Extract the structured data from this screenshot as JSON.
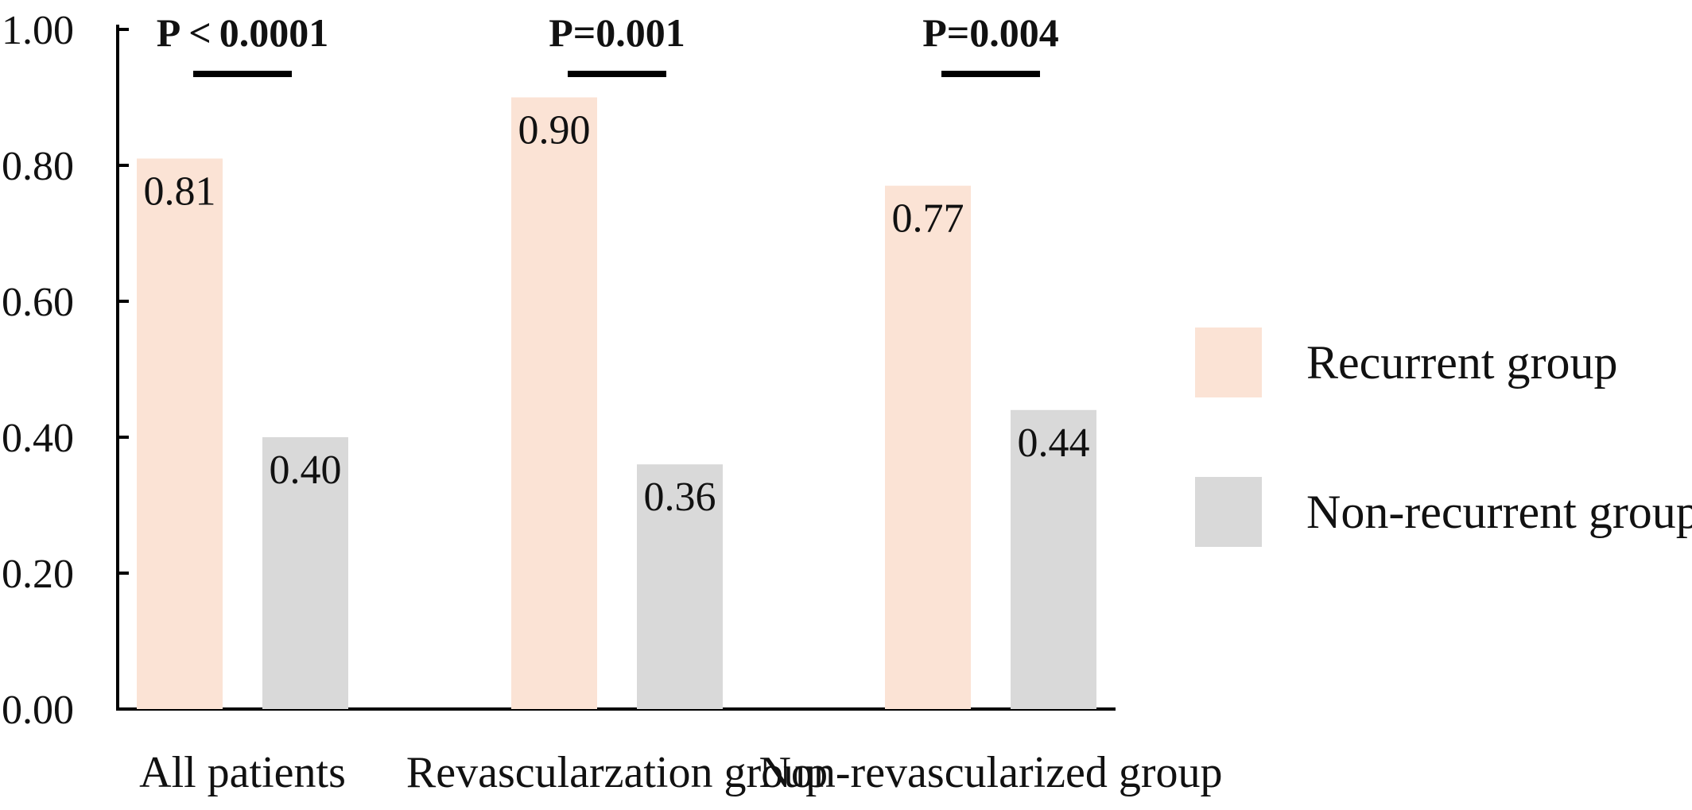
{
  "chart_data": {
    "type": "bar",
    "title": "",
    "xlabel": "",
    "ylabel": "",
    "ylim": [
      0,
      1.0
    ],
    "yticks": [
      "0.00",
      "0.20",
      "0.40",
      "0.60",
      "0.80",
      "1.00"
    ],
    "categories": [
      "All patients",
      "Revascularzation group",
      "Non-revascularized group"
    ],
    "series": [
      {
        "name": "Recurrent group",
        "color": "#fbe3d5",
        "values": [
          0.81,
          0.9,
          0.77
        ],
        "labels": [
          "0.81",
          "0.90",
          "0.77"
        ]
      },
      {
        "name": "Non-recurrent group",
        "color": "#d9d9d9",
        "values": [
          0.4,
          0.36,
          0.44
        ],
        "labels": [
          "0.40",
          "0.36",
          "0.44"
        ]
      }
    ],
    "annotations": [
      "P < 0.0001",
      "P=0.001",
      "P=0.004"
    ],
    "legend_position": "right",
    "grid": false
  }
}
